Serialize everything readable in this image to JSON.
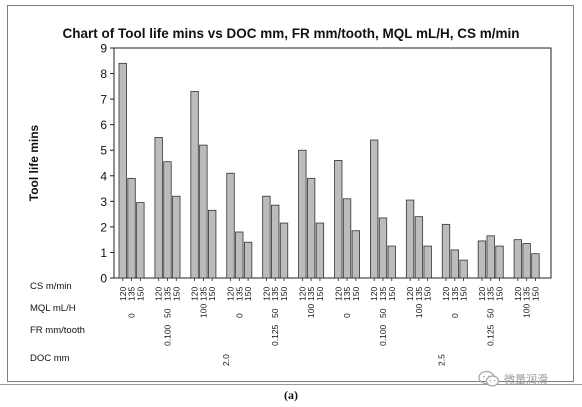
{
  "caption": "(a)",
  "watermark": {
    "text": "微量润滑",
    "icon": "wechat-icon"
  },
  "chart_data": {
    "type": "bar",
    "title": "Chart of Tool life mins vs DOC mm, FR mm/tooth, MQL mL/H, CS m/min",
    "ylabel": "Tool life mins",
    "ylim": [
      0,
      9
    ],
    "yticks": [
      "0",
      "1",
      "2",
      "3",
      "4",
      "5",
      "6",
      "7",
      "8",
      "9"
    ],
    "grid": false,
    "legend": "none",
    "bar_color": "#bcbcbc",
    "factor_labels": [
      "CS m/min",
      "MQL mL/H",
      "FR mm/tooth",
      "DOC mm"
    ],
    "cs_levels": [
      "120",
      "135",
      "150"
    ],
    "mql_levels": [
      "0",
      "50",
      "100"
    ],
    "fr_levels": [
      "0.100",
      "0.125"
    ],
    "doc_levels": [
      "2.0",
      "2.5"
    ],
    "groups": [
      {
        "doc": "2.0",
        "fr": "0.100",
        "mql": "0",
        "values": [
          8.4,
          3.9,
          2.95
        ]
      },
      {
        "doc": "2.0",
        "fr": "0.100",
        "mql": "50",
        "values": [
          5.5,
          4.55,
          3.2
        ]
      },
      {
        "doc": "2.0",
        "fr": "0.100",
        "mql": "100",
        "values": [
          7.3,
          5.2,
          2.65
        ]
      },
      {
        "doc": "2.0",
        "fr": "0.125",
        "mql": "0",
        "values": [
          4.1,
          1.8,
          1.4
        ]
      },
      {
        "doc": "2.0",
        "fr": "0.125",
        "mql": "50",
        "values": [
          3.2,
          2.85,
          2.15
        ]
      },
      {
        "doc": "2.0",
        "fr": "0.125",
        "mql": "100",
        "values": [
          5.0,
          3.9,
          2.15
        ]
      },
      {
        "doc": "2.5",
        "fr": "0.100",
        "mql": "0",
        "values": [
          4.6,
          3.1,
          1.85
        ]
      },
      {
        "doc": "2.5",
        "fr": "0.100",
        "mql": "50",
        "values": [
          5.4,
          2.35,
          1.25
        ]
      },
      {
        "doc": "2.5",
        "fr": "0.100",
        "mql": "100",
        "values": [
          3.05,
          2.4,
          1.25
        ]
      },
      {
        "doc": "2.5",
        "fr": "0.125",
        "mql": "0",
        "values": [
          2.1,
          1.1,
          0.7
        ]
      },
      {
        "doc": "2.5",
        "fr": "0.125",
        "mql": "50",
        "values": [
          1.45,
          1.65,
          1.25
        ]
      },
      {
        "doc": "2.5",
        "fr": "0.125",
        "mql": "100",
        "values": [
          1.5,
          1.35,
          0.95
        ]
      }
    ]
  }
}
